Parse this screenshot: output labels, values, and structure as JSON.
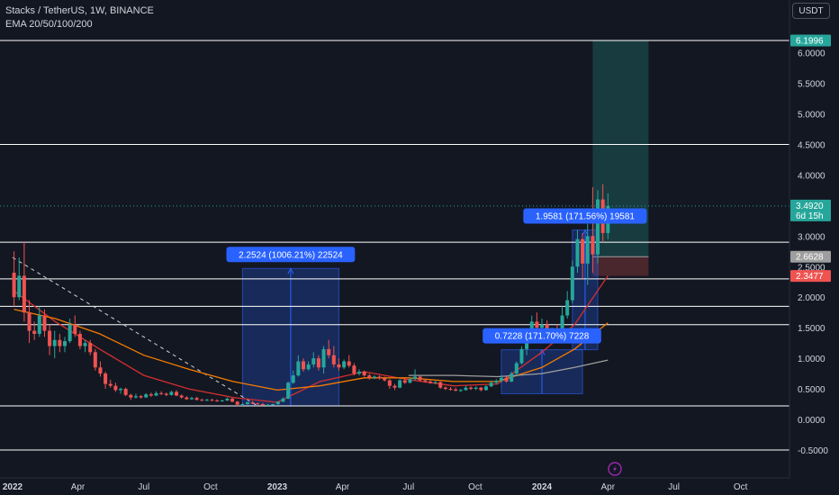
{
  "legend": {
    "symbol": "Stacks / TetherUS, 1W, BINANCE",
    "indicator": "EMA 20/50/100/200"
  },
  "currency": "USDT",
  "colors": {
    "background": "#131722",
    "up": "#26a69a",
    "down": "#ef5350",
    "ema20": "#d32f2f",
    "ema50": "#f57c00",
    "ema100": "#9e9e9e",
    "hline": "#ffffff",
    "measure_fill": "rgba(41,98,255,0.25)",
    "measure_label": "#2962ff",
    "target_zone": "rgba(38,166,154,0.25)",
    "stop_zone": "rgba(239,83,80,0.25)"
  },
  "chart_data": {
    "type": "candlestick",
    "x_axis": {
      "tick_labels": [
        "2022",
        "Apr",
        "Jul",
        "Oct",
        "2023",
        "Apr",
        "Jul",
        "Oct",
        "2024",
        "Apr",
        "Jul",
        "Oct"
      ],
      "range": [
        "2022-01-01",
        "2024-12-31"
      ]
    },
    "y_axis": {
      "tick_labels": [
        "6.0000",
        "5.5000",
        "5.0000",
        "4.5000",
        "4.0000",
        "3.5000",
        "3.0000",
        "2.5000",
        "2.0000",
        "1.5000",
        "1.0000",
        "0.5000",
        "0.0000",
        "-0.5000"
      ],
      "range": [
        -0.75,
        6.6
      ]
    },
    "horizontal_levels": [
      6.2,
      4.5,
      2.9,
      2.3,
      1.85,
      1.55,
      0.22,
      -0.5
    ],
    "price_tags": [
      {
        "label": "6.1996",
        "value": 6.1996,
        "color": "#26a69a"
      },
      {
        "label": "3.4920",
        "sublabel": "6d 15h",
        "value": 3.492,
        "color": "#26a69a"
      },
      {
        "label": "2.6628",
        "value": 2.6628,
        "color": "#9e9e9e"
      },
      {
        "label": "2.3477",
        "value": 2.3477,
        "color": "#ef5350"
      }
    ],
    "measurements": [
      {
        "label": "2.2524 (1006.21%) 22524",
        "from": {
          "date": "2022-11-14",
          "price": 0.22
        },
        "to": {
          "date": "2023-03-27",
          "price": 2.47
        }
      },
      {
        "label": "0.7228 (171.70%) 7228",
        "from": {
          "date": "2023-11-06",
          "price": 0.42
        },
        "to": {
          "date": "2024-02-26",
          "price": 1.14
        }
      },
      {
        "label": "1.9581 (171.56%) 19581",
        "from": {
          "date": "2024-02-12",
          "price": 1.14
        },
        "to": {
          "date": "2024-03-18",
          "price": 3.1
        }
      }
    ],
    "position": {
      "entry": 2.6628,
      "stop": 2.3477,
      "target": 6.1996,
      "from": "2024-03-11",
      "to": "2024-05-27"
    },
    "trendline": {
      "from": {
        "date": "2022-01-01",
        "price": 2.65
      },
      "to": {
        "date": "2022-12-05",
        "price": 0.22
      }
    },
    "candles": [
      {
        "d": "2022-01-03",
        "o": 2.4,
        "h": 2.75,
        "l": 1.85,
        "c": 2.0
      },
      {
        "d": "2022-01-10",
        "o": 2.0,
        "h": 2.65,
        "l": 1.95,
        "c": 2.35
      },
      {
        "d": "2022-01-17",
        "o": 2.35,
        "h": 2.9,
        "l": 1.6,
        "c": 1.75
      },
      {
        "d": "2022-01-24",
        "o": 1.75,
        "h": 1.95,
        "l": 1.25,
        "c": 1.45
      },
      {
        "d": "2022-01-31",
        "o": 1.45,
        "h": 1.6,
        "l": 1.3,
        "c": 1.4
      },
      {
        "d": "2022-02-07",
        "o": 1.4,
        "h": 1.85,
        "l": 1.35,
        "c": 1.7
      },
      {
        "d": "2022-02-14",
        "o": 1.7,
        "h": 1.8,
        "l": 1.35,
        "c": 1.45
      },
      {
        "d": "2022-02-21",
        "o": 1.45,
        "h": 1.55,
        "l": 1.05,
        "c": 1.2
      },
      {
        "d": "2022-02-28",
        "o": 1.2,
        "h": 1.45,
        "l": 1.0,
        "c": 1.3
      },
      {
        "d": "2022-03-07",
        "o": 1.3,
        "h": 1.4,
        "l": 1.1,
        "c": 1.2
      },
      {
        "d": "2022-03-14",
        "o": 1.2,
        "h": 1.35,
        "l": 1.1,
        "c": 1.28
      },
      {
        "d": "2022-03-21",
        "o": 1.28,
        "h": 1.65,
        "l": 1.25,
        "c": 1.55
      },
      {
        "d": "2022-03-28",
        "o": 1.55,
        "h": 1.7,
        "l": 1.35,
        "c": 1.4
      },
      {
        "d": "2022-04-04",
        "o": 1.4,
        "h": 1.45,
        "l": 1.15,
        "c": 1.2
      },
      {
        "d": "2022-04-11",
        "o": 1.2,
        "h": 1.3,
        "l": 1.1,
        "c": 1.25
      },
      {
        "d": "2022-04-18",
        "o": 1.25,
        "h": 1.3,
        "l": 1.05,
        "c": 1.1
      },
      {
        "d": "2022-04-25",
        "o": 1.1,
        "h": 1.15,
        "l": 0.8,
        "c": 0.85
      },
      {
        "d": "2022-05-02",
        "o": 0.85,
        "h": 0.95,
        "l": 0.7,
        "c": 0.75
      },
      {
        "d": "2022-05-09",
        "o": 0.75,
        "h": 0.78,
        "l": 0.5,
        "c": 0.58
      },
      {
        "d": "2022-05-16",
        "o": 0.58,
        "h": 0.65,
        "l": 0.52,
        "c": 0.55
      },
      {
        "d": "2022-05-23",
        "o": 0.55,
        "h": 0.6,
        "l": 0.45,
        "c": 0.48
      },
      {
        "d": "2022-05-30",
        "o": 0.48,
        "h": 0.52,
        "l": 0.42,
        "c": 0.5
      },
      {
        "d": "2022-06-06",
        "o": 0.5,
        "h": 0.52,
        "l": 0.38,
        "c": 0.4
      },
      {
        "d": "2022-06-13",
        "o": 0.4,
        "h": 0.42,
        "l": 0.32,
        "c": 0.36
      },
      {
        "d": "2022-06-20",
        "o": 0.36,
        "h": 0.42,
        "l": 0.34,
        "c": 0.38
      },
      {
        "d": "2022-06-27",
        "o": 0.38,
        "h": 0.4,
        "l": 0.34,
        "c": 0.36
      },
      {
        "d": "2022-07-04",
        "o": 0.36,
        "h": 0.43,
        "l": 0.35,
        "c": 0.41
      },
      {
        "d": "2022-07-11",
        "o": 0.41,
        "h": 0.44,
        "l": 0.37,
        "c": 0.39
      },
      {
        "d": "2022-07-18",
        "o": 0.39,
        "h": 0.46,
        "l": 0.38,
        "c": 0.43
      },
      {
        "d": "2022-07-25",
        "o": 0.43,
        "h": 0.46,
        "l": 0.4,
        "c": 0.42
      },
      {
        "d": "2022-08-01",
        "o": 0.42,
        "h": 0.44,
        "l": 0.38,
        "c": 0.4
      },
      {
        "d": "2022-08-08",
        "o": 0.4,
        "h": 0.47,
        "l": 0.39,
        "c": 0.45
      },
      {
        "d": "2022-08-15",
        "o": 0.45,
        "h": 0.48,
        "l": 0.38,
        "c": 0.39
      },
      {
        "d": "2022-08-22",
        "o": 0.39,
        "h": 0.41,
        "l": 0.34,
        "c": 0.36
      },
      {
        "d": "2022-08-29",
        "o": 0.36,
        "h": 0.38,
        "l": 0.32,
        "c": 0.33
      },
      {
        "d": "2022-09-05",
        "o": 0.33,
        "h": 0.37,
        "l": 0.32,
        "c": 0.35
      },
      {
        "d": "2022-09-12",
        "o": 0.35,
        "h": 0.37,
        "l": 0.31,
        "c": 0.32
      },
      {
        "d": "2022-09-19",
        "o": 0.32,
        "h": 0.34,
        "l": 0.3,
        "c": 0.31
      },
      {
        "d": "2022-09-26",
        "o": 0.31,
        "h": 0.34,
        "l": 0.3,
        "c": 0.32
      },
      {
        "d": "2022-10-03",
        "o": 0.32,
        "h": 0.34,
        "l": 0.3,
        "c": 0.31
      },
      {
        "d": "2022-10-10",
        "o": 0.31,
        "h": 0.33,
        "l": 0.29,
        "c": 0.3
      },
      {
        "d": "2022-10-17",
        "o": 0.3,
        "h": 0.32,
        "l": 0.29,
        "c": 0.31
      },
      {
        "d": "2022-10-24",
        "o": 0.31,
        "h": 0.36,
        "l": 0.3,
        "c": 0.34
      },
      {
        "d": "2022-10-31",
        "o": 0.34,
        "h": 0.35,
        "l": 0.28,
        "c": 0.29
      },
      {
        "d": "2022-11-07",
        "o": 0.29,
        "h": 0.3,
        "l": 0.22,
        "c": 0.24
      },
      {
        "d": "2022-11-14",
        "o": 0.24,
        "h": 0.27,
        "l": 0.22,
        "c": 0.25
      },
      {
        "d": "2022-11-21",
        "o": 0.25,
        "h": 0.29,
        "l": 0.24,
        "c": 0.28
      },
      {
        "d": "2022-11-28",
        "o": 0.28,
        "h": 0.3,
        "l": 0.25,
        "c": 0.26
      },
      {
        "d": "2022-12-05",
        "o": 0.26,
        "h": 0.28,
        "l": 0.24,
        "c": 0.25
      },
      {
        "d": "2022-12-12",
        "o": 0.25,
        "h": 0.27,
        "l": 0.22,
        "c": 0.23
      },
      {
        "d": "2022-12-19",
        "o": 0.23,
        "h": 0.25,
        "l": 0.22,
        "c": 0.24
      },
      {
        "d": "2022-12-26",
        "o": 0.24,
        "h": 0.26,
        "l": 0.23,
        "c": 0.25
      },
      {
        "d": "2023-01-02",
        "o": 0.25,
        "h": 0.3,
        "l": 0.24,
        "c": 0.29
      },
      {
        "d": "2023-01-09",
        "o": 0.29,
        "h": 0.36,
        "l": 0.28,
        "c": 0.34
      },
      {
        "d": "2023-01-16",
        "o": 0.34,
        "h": 0.62,
        "l": 0.33,
        "c": 0.6
      },
      {
        "d": "2023-01-23",
        "o": 0.6,
        "h": 0.8,
        "l": 0.58,
        "c": 0.72
      },
      {
        "d": "2023-01-30",
        "o": 0.72,
        "h": 1.05,
        "l": 0.7,
        "c": 0.95
      },
      {
        "d": "2023-02-06",
        "o": 0.95,
        "h": 1.0,
        "l": 0.78,
        "c": 0.82
      },
      {
        "d": "2023-02-13",
        "o": 0.82,
        "h": 0.95,
        "l": 0.8,
        "c": 0.9
      },
      {
        "d": "2023-02-20",
        "o": 0.9,
        "h": 1.1,
        "l": 0.85,
        "c": 1.0
      },
      {
        "d": "2023-02-27",
        "o": 1.0,
        "h": 1.05,
        "l": 0.8,
        "c": 0.85
      },
      {
        "d": "2023-03-06",
        "o": 0.85,
        "h": 1.2,
        "l": 0.75,
        "c": 1.15
      },
      {
        "d": "2023-03-13",
        "o": 1.15,
        "h": 1.3,
        "l": 1.0,
        "c": 1.05
      },
      {
        "d": "2023-03-20",
        "o": 1.05,
        "h": 1.2,
        "l": 0.85,
        "c": 0.9
      },
      {
        "d": "2023-03-27",
        "o": 0.9,
        "h": 1.0,
        "l": 0.8,
        "c": 0.85
      },
      {
        "d": "2023-04-03",
        "o": 0.85,
        "h": 0.98,
        "l": 0.82,
        "c": 0.95
      },
      {
        "d": "2023-04-10",
        "o": 0.95,
        "h": 1.05,
        "l": 0.85,
        "c": 0.88
      },
      {
        "d": "2023-04-17",
        "o": 0.88,
        "h": 0.92,
        "l": 0.72,
        "c": 0.75
      },
      {
        "d": "2023-04-24",
        "o": 0.75,
        "h": 0.82,
        "l": 0.72,
        "c": 0.78
      },
      {
        "d": "2023-05-01",
        "o": 0.78,
        "h": 0.8,
        "l": 0.7,
        "c": 0.72
      },
      {
        "d": "2023-05-08",
        "o": 0.72,
        "h": 0.75,
        "l": 0.65,
        "c": 0.68
      },
      {
        "d": "2023-05-15",
        "o": 0.68,
        "h": 0.72,
        "l": 0.66,
        "c": 0.7
      },
      {
        "d": "2023-05-22",
        "o": 0.7,
        "h": 0.72,
        "l": 0.65,
        "c": 0.67
      },
      {
        "d": "2023-05-29",
        "o": 0.67,
        "h": 0.7,
        "l": 0.62,
        "c": 0.64
      },
      {
        "d": "2023-06-05",
        "o": 0.64,
        "h": 0.66,
        "l": 0.5,
        "c": 0.55
      },
      {
        "d": "2023-06-12",
        "o": 0.55,
        "h": 0.58,
        "l": 0.48,
        "c": 0.52
      },
      {
        "d": "2023-06-19",
        "o": 0.52,
        "h": 0.66,
        "l": 0.51,
        "c": 0.64
      },
      {
        "d": "2023-06-26",
        "o": 0.64,
        "h": 0.68,
        "l": 0.58,
        "c": 0.6
      },
      {
        "d": "2023-07-03",
        "o": 0.6,
        "h": 0.68,
        "l": 0.59,
        "c": 0.66
      },
      {
        "d": "2023-07-10",
        "o": 0.66,
        "h": 0.82,
        "l": 0.64,
        "c": 0.7
      },
      {
        "d": "2023-07-17",
        "o": 0.7,
        "h": 0.72,
        "l": 0.62,
        "c": 0.64
      },
      {
        "d": "2023-07-24",
        "o": 0.64,
        "h": 0.66,
        "l": 0.6,
        "c": 0.62
      },
      {
        "d": "2023-07-31",
        "o": 0.62,
        "h": 0.64,
        "l": 0.58,
        "c": 0.6
      },
      {
        "d": "2023-08-07",
        "o": 0.6,
        "h": 0.63,
        "l": 0.58,
        "c": 0.61
      },
      {
        "d": "2023-08-14",
        "o": 0.61,
        "h": 0.62,
        "l": 0.5,
        "c": 0.52
      },
      {
        "d": "2023-08-21",
        "o": 0.52,
        "h": 0.54,
        "l": 0.48,
        "c": 0.5
      },
      {
        "d": "2023-08-28",
        "o": 0.5,
        "h": 0.53,
        "l": 0.47,
        "c": 0.49
      },
      {
        "d": "2023-09-04",
        "o": 0.49,
        "h": 0.52,
        "l": 0.46,
        "c": 0.47
      },
      {
        "d": "2023-09-11",
        "o": 0.47,
        "h": 0.5,
        "l": 0.45,
        "c": 0.48
      },
      {
        "d": "2023-09-18",
        "o": 0.48,
        "h": 0.55,
        "l": 0.47,
        "c": 0.52
      },
      {
        "d": "2023-09-25",
        "o": 0.52,
        "h": 0.54,
        "l": 0.48,
        "c": 0.5
      },
      {
        "d": "2023-10-02",
        "o": 0.5,
        "h": 0.54,
        "l": 0.48,
        "c": 0.52
      },
      {
        "d": "2023-10-09",
        "o": 0.52,
        "h": 0.53,
        "l": 0.46,
        "c": 0.48
      },
      {
        "d": "2023-10-16",
        "o": 0.48,
        "h": 0.56,
        "l": 0.47,
        "c": 0.54
      },
      {
        "d": "2023-10-23",
        "o": 0.54,
        "h": 0.64,
        "l": 0.53,
        "c": 0.6
      },
      {
        "d": "2023-10-30",
        "o": 0.6,
        "h": 0.66,
        "l": 0.57,
        "c": 0.63
      },
      {
        "d": "2023-11-06",
        "o": 0.63,
        "h": 0.72,
        "l": 0.6,
        "c": 0.68
      },
      {
        "d": "2023-11-13",
        "o": 0.68,
        "h": 0.7,
        "l": 0.6,
        "c": 0.62
      },
      {
        "d": "2023-11-20",
        "o": 0.62,
        "h": 0.78,
        "l": 0.61,
        "c": 0.75
      },
      {
        "d": "2023-11-27",
        "o": 0.75,
        "h": 0.95,
        "l": 0.73,
        "c": 0.92
      },
      {
        "d": "2023-12-04",
        "o": 0.92,
        "h": 1.2,
        "l": 0.9,
        "c": 1.15
      },
      {
        "d": "2023-12-11",
        "o": 1.15,
        "h": 1.45,
        "l": 1.05,
        "c": 1.4
      },
      {
        "d": "2023-12-18",
        "o": 1.4,
        "h": 1.7,
        "l": 1.25,
        "c": 1.6
      },
      {
        "d": "2023-12-25",
        "o": 1.6,
        "h": 1.75,
        "l": 1.4,
        "c": 1.5
      },
      {
        "d": "2024-01-01",
        "o": 1.5,
        "h": 1.65,
        "l": 1.3,
        "c": 1.55
      },
      {
        "d": "2024-01-08",
        "o": 1.55,
        "h": 1.62,
        "l": 1.25,
        "c": 1.35
      },
      {
        "d": "2024-01-15",
        "o": 1.35,
        "h": 1.5,
        "l": 1.3,
        "c": 1.45
      },
      {
        "d": "2024-01-22",
        "o": 1.45,
        "h": 1.55,
        "l": 1.3,
        "c": 1.38
      },
      {
        "d": "2024-01-29",
        "o": 1.38,
        "h": 1.85,
        "l": 1.35,
        "c": 1.7
      },
      {
        "d": "2024-02-05",
        "o": 1.7,
        "h": 2.1,
        "l": 1.65,
        "c": 1.95
      },
      {
        "d": "2024-02-12",
        "o": 1.95,
        "h": 2.6,
        "l": 1.9,
        "c": 2.5
      },
      {
        "d": "2024-02-19",
        "o": 2.5,
        "h": 3.1,
        "l": 2.4,
        "c": 2.95
      },
      {
        "d": "2024-02-26",
        "o": 2.95,
        "h": 3.05,
        "l": 2.3,
        "c": 2.55
      },
      {
        "d": "2024-03-04",
        "o": 2.55,
        "h": 3.2,
        "l": 2.2,
        "c": 3.0
      },
      {
        "d": "2024-03-11",
        "o": 3.0,
        "h": 3.8,
        "l": 2.4,
        "c": 2.7
      },
      {
        "d": "2024-03-18",
        "o": 2.7,
        "h": 3.75,
        "l": 2.55,
        "c": 3.6
      },
      {
        "d": "2024-03-25",
        "o": 3.6,
        "h": 3.85,
        "l": 2.9,
        "c": 3.05
      },
      {
        "d": "2024-04-01",
        "o": 3.05,
        "h": 3.7,
        "l": 2.95,
        "c": 3.49
      }
    ],
    "series": [
      {
        "name": "EMA 20",
        "color": "#d32f2f",
        "points": [
          [
            "2022-01-03",
            2.1
          ],
          [
            "2022-03-01",
            1.6
          ],
          [
            "2022-05-01",
            1.15
          ],
          [
            "2022-07-01",
            0.72
          ],
          [
            "2022-09-01",
            0.5
          ],
          [
            "2022-11-01",
            0.36
          ],
          [
            "2023-01-01",
            0.28
          ],
          [
            "2023-03-01",
            0.62
          ],
          [
            "2023-05-01",
            0.78
          ],
          [
            "2023-07-01",
            0.65
          ],
          [
            "2023-09-01",
            0.55
          ],
          [
            "2023-11-01",
            0.58
          ],
          [
            "2024-01-01",
            1.1
          ],
          [
            "2024-02-15",
            1.55
          ],
          [
            "2024-04-01",
            2.35
          ]
        ]
      },
      {
        "name": "EMA 50",
        "color": "#f57c00",
        "points": [
          [
            "2022-01-03",
            1.8
          ],
          [
            "2022-03-01",
            1.65
          ],
          [
            "2022-05-01",
            1.4
          ],
          [
            "2022-07-01",
            1.05
          ],
          [
            "2022-09-01",
            0.82
          ],
          [
            "2022-11-01",
            0.62
          ],
          [
            "2023-01-01",
            0.48
          ],
          [
            "2023-03-01",
            0.55
          ],
          [
            "2023-05-01",
            0.68
          ],
          [
            "2023-07-01",
            0.68
          ],
          [
            "2023-09-01",
            0.62
          ],
          [
            "2023-11-01",
            0.62
          ],
          [
            "2024-01-01",
            0.85
          ],
          [
            "2024-02-15",
            1.15
          ],
          [
            "2024-04-01",
            1.58
          ]
        ]
      },
      {
        "name": "EMA 100",
        "color": "#9e9e9e",
        "points": [
          [
            "2023-07-01",
            0.72
          ],
          [
            "2023-09-01",
            0.72
          ],
          [
            "2023-11-01",
            0.7
          ],
          [
            "2024-01-01",
            0.75
          ],
          [
            "2024-02-15",
            0.85
          ],
          [
            "2024-04-01",
            0.97
          ]
        ]
      }
    ]
  }
}
